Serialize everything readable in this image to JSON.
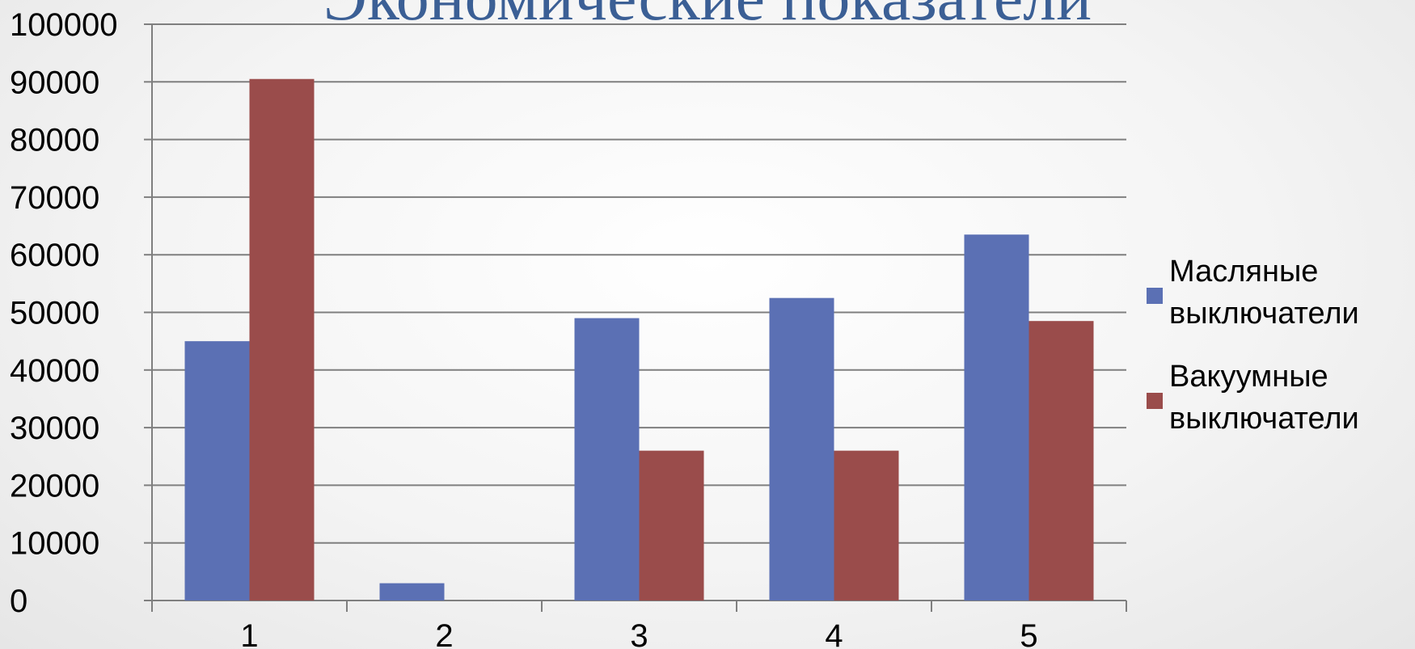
{
  "chart_data": {
    "type": "bar",
    "title": "Экономические показатели",
    "categories": [
      "1",
      "2",
      "3",
      "4",
      "5"
    ],
    "series": [
      {
        "name": "Масляные выключатели",
        "name_lines": [
          "Масляные",
          "выключатели"
        ],
        "color": "#5b70b4",
        "values": [
          45000,
          3000,
          49000,
          52500,
          63500
        ]
      },
      {
        "name": "Вакуумные выключатели",
        "name_lines": [
          "Вакуумные",
          "выключатели"
        ],
        "color": "#9a4c4b",
        "values": [
          90500,
          0,
          26000,
          26000,
          48500
        ]
      }
    ],
    "ylim": [
      0,
      100000
    ],
    "yticks": [
      "0",
      "10000",
      "20000",
      "30000",
      "40000",
      "50000",
      "60000",
      "70000",
      "80000",
      "90000",
      "100000"
    ],
    "grid": true,
    "legend_position": "right"
  }
}
